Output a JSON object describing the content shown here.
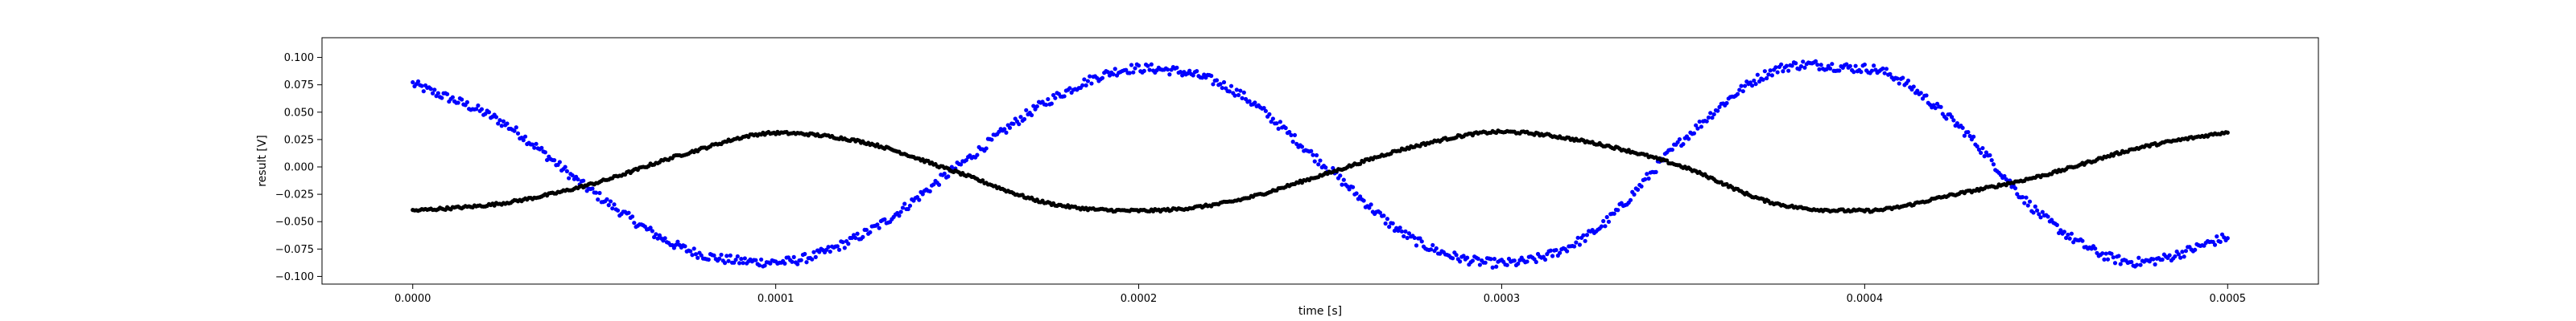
{
  "chart_data": {
    "type": "scatter",
    "title": "",
    "xlabel": "time [s]",
    "ylabel": "result [V]",
    "xlim": [
      -2.5e-05,
      0.000525
    ],
    "ylim": [
      -0.107,
      0.118
    ],
    "x_ticks": [
      0.0,
      0.0001,
      0.0002,
      0.0003,
      0.0004,
      0.0005
    ],
    "x_tick_labels": [
      "0.0000",
      "0.0001",
      "0.0002",
      "0.0003",
      "0.0004",
      "0.0005"
    ],
    "y_ticks": [
      -0.1,
      -0.075,
      -0.05,
      -0.025,
      0.0,
      0.025,
      0.05,
      0.075,
      0.1
    ],
    "y_tick_labels": [
      "−0.100",
      "−0.075",
      "−0.050",
      "−0.025",
      "0.000",
      "0.025",
      "0.050",
      "0.075",
      "0.100"
    ],
    "grid": false,
    "legend": false,
    "series": [
      {
        "color": "#0000ff",
        "marker": "dot",
        "x": [
          0.0,
          2.5e-05,
          5e-05,
          7.5e-05,
          0.0001,
          0.000125,
          0.00015,
          0.000175,
          0.0002,
          0.000225,
          0.00025,
          0.000275,
          0.0003,
          0.000325,
          0.00035,
          0.000375,
          0.0004,
          0.000425,
          0.00045,
          0.000475,
          0.0005
        ],
        "y": [
          0.076,
          0.04,
          -0.024,
          -0.075,
          -0.087,
          -0.06,
          0.0,
          0.06,
          0.09,
          0.072,
          0.005,
          -0.065,
          -0.088,
          -0.06,
          0.025,
          0.088,
          0.09,
          0.04,
          -0.048,
          -0.087,
          -0.064
        ]
      },
      {
        "color": "#000000",
        "marker": "dot",
        "x": [
          0.0,
          2.5e-05,
          5e-05,
          7.5e-05,
          0.0001,
          0.000125,
          0.00015,
          0.000175,
          0.0002,
          0.000225,
          0.00025,
          0.000275,
          0.0003,
          0.000325,
          0.00035,
          0.000375,
          0.0004,
          0.000425,
          0.00045,
          0.000475,
          0.0005
        ],
        "y": [
          -0.04,
          -0.033,
          -0.015,
          0.012,
          0.031,
          0.022,
          -0.005,
          -0.033,
          -0.04,
          -0.032,
          -0.008,
          0.018,
          0.032,
          0.022,
          0.0,
          -0.033,
          -0.04,
          -0.025,
          -0.007,
          0.017,
          0.032
        ]
      }
    ]
  }
}
